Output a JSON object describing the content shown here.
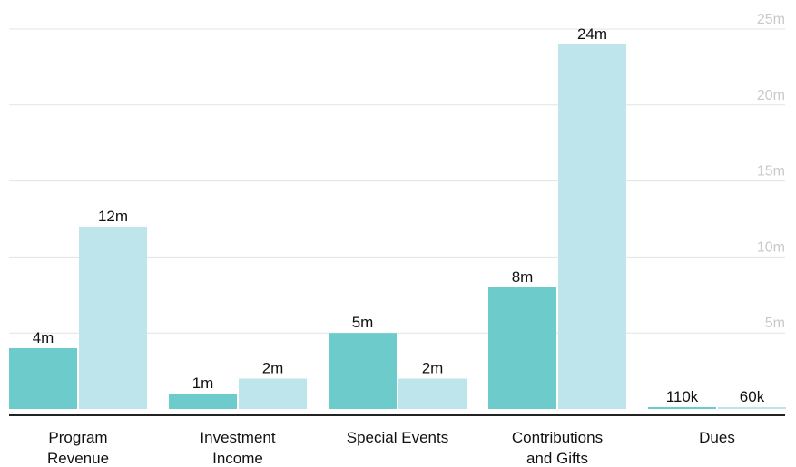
{
  "chart_data": {
    "type": "bar",
    "categories": [
      [
        "Program",
        "Revenue"
      ],
      [
        "Investment",
        "Income"
      ],
      [
        "Special Events"
      ],
      [
        "Contributions",
        "and Gifts"
      ],
      [
        "Dues"
      ]
    ],
    "series": [
      {
        "values": [
          4000000,
          1000000,
          5000000,
          8000000,
          110000
        ],
        "labels": [
          "4m",
          "1m",
          "5m",
          "8m",
          "110k"
        ],
        "color": "#6ecbcc"
      },
      {
        "values": [
          12000000,
          2000000,
          2000000,
          24000000,
          60000
        ],
        "labels": [
          "12m",
          "2m",
          "2m",
          "24m",
          "60k"
        ],
        "color": "#bde5eb"
      }
    ],
    "ylim": [
      0,
      25000000
    ],
    "yticks": [
      {
        "value": 5000000,
        "label": "5m"
      },
      {
        "value": 10000000,
        "label": "10m"
      },
      {
        "value": 15000000,
        "label": "15m"
      },
      {
        "value": 20000000,
        "label": "20m"
      },
      {
        "value": 25000000,
        "label": "25m"
      }
    ],
    "grid": true,
    "axis_side": "right",
    "title": "",
    "xlabel": "",
    "ylabel": ""
  }
}
